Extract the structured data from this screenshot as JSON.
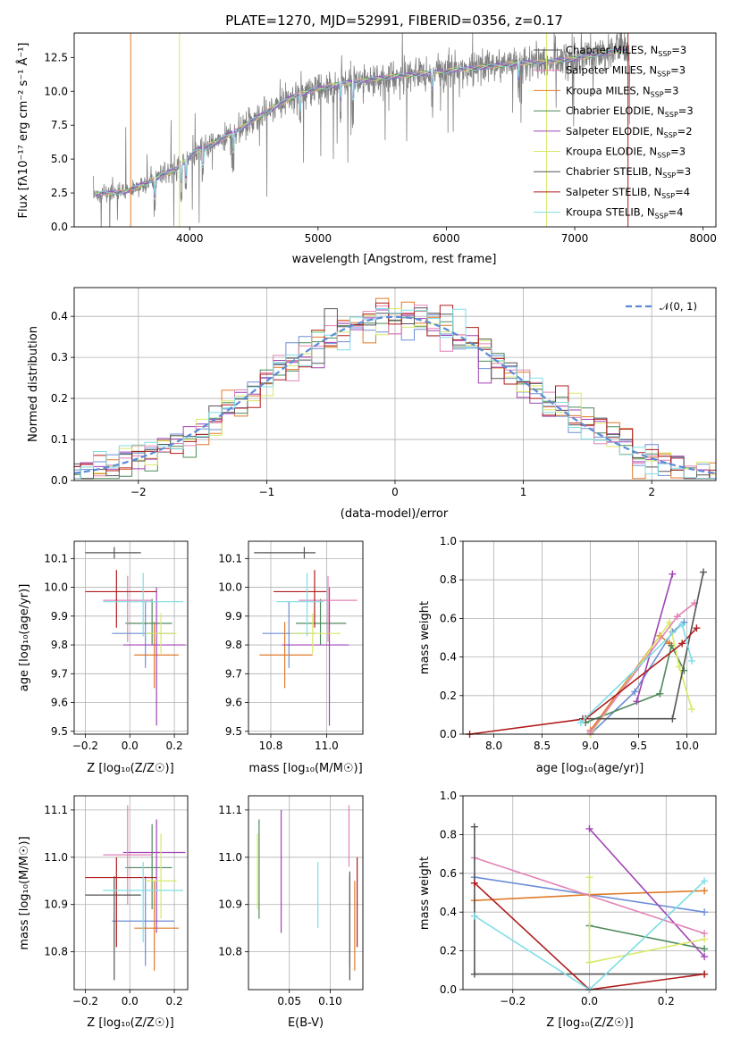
{
  "colors": {
    "c0": "#6b8ed6",
    "c1": "#e07b2a",
    "c2": "#4e8a5b",
    "c3": "#a043b5",
    "c4": "#d9e86a",
    "c5": "#e284b6",
    "c6": "#555555",
    "c7": "#b01c1c",
    "c8": "#7fdde6",
    "spectrum": "#808080",
    "grid": "#b0b0b0"
  },
  "chart_data": [
    {
      "id": "spectrum",
      "type": "line",
      "title": "PLATE=1270, MJD=52991, FIBERID=0356, z=0.17",
      "xlabel": "wavelength [Angstrom, rest frame]",
      "ylabel": "Flux [fλ10⁻¹⁷ erg cm⁻² s⁻¹ Å⁻¹]",
      "xlim": [
        3100,
        8100
      ],
      "ylim": [
        0,
        14.3
      ],
      "xticks": [
        "4000",
        "5000",
        "6000",
        "7000",
        "8000"
      ],
      "yticks": [
        "0.0",
        "2.5",
        "5.0",
        "7.5",
        "10.0",
        "12.5"
      ],
      "legend_position": "top-right",
      "legend": [
        {
          "label": "Chabrier MILES, N",
          "sub": "SSP",
          "suffix": "=3",
          "color": "c6"
        },
        {
          "label": "Salpeter MILES, N",
          "sub": "SSP",
          "suffix": "=3",
          "color": "c5"
        },
        {
          "label": "Kroupa MILES, N",
          "sub": "SSP",
          "suffix": "=3",
          "color": "c1"
        },
        {
          "label": "Chabrier ELODIE, N",
          "sub": "SSP",
          "suffix": "=3",
          "color": "c2"
        },
        {
          "label": "Salpeter ELODIE, N",
          "sub": "SSP",
          "suffix": "=2",
          "color": "c3"
        },
        {
          "label": "Kroupa ELODIE, N",
          "sub": "SSP",
          "suffix": "=3",
          "color": "c4"
        },
        {
          "label": "Chabrier STELIB, N",
          "sub": "SSP",
          "suffix": "=3",
          "color": "c6"
        },
        {
          "label": "Salpeter STELIB, N",
          "sub": "SSP",
          "suffix": "=4",
          "color": "c7"
        },
        {
          "label": "Kroupa STELIB, N",
          "sub": "SSP",
          "suffix": "=4",
          "color": "c8"
        }
      ],
      "continuum": [
        [
          3250,
          2.4
        ],
        [
          3500,
          2.6
        ],
        [
          3700,
          3.4
        ],
        [
          3900,
          4.3
        ],
        [
          4050,
          5.6
        ],
        [
          4200,
          6.2
        ],
        [
          4400,
          7.3
        ],
        [
          4600,
          8.5
        ],
        [
          4800,
          9.6
        ],
        [
          5000,
          10.2
        ],
        [
          5200,
          10.6
        ],
        [
          5500,
          11.0
        ],
        [
          5800,
          11.3
        ],
        [
          6000,
          11.5
        ],
        [
          6300,
          11.8
        ],
        [
          6600,
          12.1
        ],
        [
          6800,
          12.2
        ],
        [
          7000,
          12.4
        ],
        [
          7200,
          12.8
        ],
        [
          7400,
          13.1
        ]
      ]
    },
    {
      "id": "residual_hist",
      "type": "line",
      "xlabel": "(data-model)/error",
      "ylabel": "Normed distribution",
      "xlim": [
        -2.5,
        2.5
      ],
      "ylim": [
        0,
        0.47
      ],
      "xticks": [
        "−2",
        "−1",
        "0",
        "1",
        "2"
      ],
      "yticks": [
        "0.0",
        "0.1",
        "0.2",
        "0.3",
        "0.4"
      ],
      "legend_position": "top-right",
      "legend_label": "𝒩(0, 1)",
      "bin_width": 0.1
    },
    {
      "id": "age_vs_Z",
      "type": "scatter",
      "xlabel": "Z [log₁₀(Z/Z☉)]",
      "ylabel": "age  [log₁₀(age/yr)]",
      "xlim": [
        -0.25,
        0.26
      ],
      "ylim": [
        9.49,
        10.16
      ],
      "xticks": [
        -0.2,
        0.0,
        0.2
      ],
      "yticks": [
        9.5,
        9.6,
        9.7,
        9.8,
        9.9,
        10.0,
        10.1
      ]
    },
    {
      "id": "age_vs_mass",
      "type": "scatter",
      "xlabel": "mass [log₁₀(M/M☉)]",
      "ylabel": "",
      "xlim": [
        10.72,
        11.13
      ],
      "ylim": [
        9.49,
        10.16
      ],
      "xticks": [
        10.8,
        11.0
      ],
      "yticks": [
        9.5,
        9.6,
        9.7,
        9.8,
        9.9,
        10.0,
        10.1
      ]
    },
    {
      "id": "weight_vs_age",
      "type": "line",
      "xlabel": "age  [log₁₀(age/yr)]",
      "ylabel": "mass weight",
      "xlim": [
        7.68,
        10.3
      ],
      "ylim": [
        0,
        1
      ],
      "xticks": [
        8.0,
        8.5,
        9.0,
        9.5,
        10.0
      ],
      "yticks": [
        0.0,
        0.2,
        0.4,
        0.6,
        0.8,
        1.0
      ]
    },
    {
      "id": "mass_vs_Z",
      "type": "scatter",
      "xlabel": "Z [log₁₀(Z/Z☉)]",
      "ylabel": "mass [log₁₀(M/M☉)]",
      "xlim": [
        -0.25,
        0.26
      ],
      "ylim": [
        10.72,
        11.13
      ],
      "xticks": [
        -0.2,
        0.0,
        0.2
      ],
      "yticks": [
        10.8,
        10.9,
        11.0,
        11.1
      ]
    },
    {
      "id": "mass_vs_ebv",
      "type": "scatter",
      "xlabel": "E(B-V)",
      "ylabel": "",
      "xlim": [
        0.0,
        0.14
      ],
      "ylim": [
        10.72,
        11.13
      ],
      "xticks": [
        0.05,
        0.1
      ],
      "yticks": [
        10.8,
        10.9,
        11.0,
        11.1
      ]
    },
    {
      "id": "weight_vs_Z",
      "type": "line",
      "xlabel": "Z [log₁₀(Z/Z☉)]",
      "ylabel": "mass weight",
      "xlim": [
        -0.33,
        0.33
      ],
      "ylim": [
        0,
        1
      ],
      "xticks": [
        -0.2,
        0.0,
        0.2
      ],
      "yticks": [
        0.0,
        0.2,
        0.4,
        0.6,
        0.8,
        1.0
      ]
    }
  ],
  "fits": [
    {
      "color": "c0",
      "Z": 0.07,
      "Zlo": -0.08,
      "Zhi": 0.2,
      "age": 9.84,
      "alo": 9.72,
      "ahi": 9.95,
      "mass": 10.865,
      "mlo": 10.77,
      "mhi": 10.96,
      "ebv": 0.124,
      "elo": 10.77,
      "ehi": 10.96,
      "ages": [
        9.0,
        9.46,
        9.85,
        9.97
      ],
      "w": [
        0.0,
        0.22,
        0.53,
        0.58
      ],
      "Zs": [
        -0.3,
        0.3
      ],
      "wz": [
        0.58,
        0.4
      ]
    },
    {
      "color": "c1",
      "Z": 0.11,
      "Zlo": 0.02,
      "Zhi": 0.22,
      "age": 9.765,
      "alo": 9.65,
      "ahi": 9.88,
      "mass": 10.85,
      "mlo": 10.76,
      "mhi": 10.95,
      "ebv": 0.13,
      "elo": 10.76,
      "ehi": 10.95,
      "ages": [
        9.0,
        9.72,
        9.82
      ],
      "w": [
        0.02,
        0.51,
        0.47
      ],
      "Zs": [
        -0.3,
        0.0,
        0.3
      ],
      "wz": [
        0.46,
        0.49,
        0.51
      ]
    },
    {
      "color": "c2",
      "Z": 0.1,
      "Zlo": -0.02,
      "Zhi": 0.19,
      "age": 9.875,
      "alo": 9.8,
      "ahi": 9.96,
      "mass": 10.978,
      "mlo": 10.89,
      "mhi": 11.07,
      "ebv": 0.013,
      "elo": 10.87,
      "ehi": 11.08,
      "ages": [
        8.95,
        9.72,
        9.84,
        9.97
      ],
      "w": [
        0.06,
        0.21,
        0.46,
        0.33
      ],
      "Zs": [
        0.0,
        0.3
      ],
      "wz": [
        0.33,
        0.21
      ]
    },
    {
      "color": "c3",
      "Z": 0.12,
      "Zlo": -0.03,
      "Zhi": 0.25,
      "age": 9.8,
      "alo": 9.52,
      "ahi": 10.0,
      "mass": 11.01,
      "mlo": 10.84,
      "mhi": 11.08,
      "ebv": 0.04,
      "elo": 10.84,
      "ehi": 11.1,
      "ages": [
        9.48,
        9.85
      ],
      "w": [
        0.17,
        0.83
      ],
      "Zs": [
        0.0,
        0.3
      ],
      "wz": [
        0.83,
        0.17
      ]
    },
    {
      "color": "c4",
      "Z": 0.14,
      "Zlo": 0.07,
      "Zhi": 0.21,
      "age": 9.84,
      "alo": 9.77,
      "ahi": 9.91,
      "mass": 10.95,
      "mlo": 10.87,
      "mhi": 11.05,
      "ebv": 0.011,
      "elo": 10.89,
      "ehi": 11.05,
      "ages": [
        9.0,
        9.82,
        9.92,
        10.05
      ],
      "w": [
        0.0,
        0.58,
        0.35,
        0.13
      ],
      "Zs": [
        0.0,
        0.0,
        0.3
      ],
      "wz": [
        0.58,
        0.14,
        0.26
      ]
    },
    {
      "color": "c5",
      "Z": -0.01,
      "Zlo": -0.12,
      "Zhi": 0.1,
      "age": 9.955,
      "alo": 9.81,
      "ahi": 10.04,
      "mass": 11.005,
      "mlo": 10.9,
      "mhi": 11.11,
      "ebv": 0.123,
      "elo": 10.98,
      "ehi": 11.11,
      "ages": [
        9.0,
        9.9,
        10.08
      ],
      "w": [
        0.01,
        0.61,
        0.68
      ],
      "Zs": [
        -0.3,
        0.3
      ],
      "wz": [
        0.68,
        0.29
      ]
    },
    {
      "color": "c6",
      "Z": -0.07,
      "Zlo": -0.2,
      "Zhi": 0.05,
      "age": 10.12,
      "alo": 10.1,
      "ahi": 10.14,
      "mass": 10.92,
      "mlo": 10.74,
      "mhi": 10.96,
      "ebv": 0.124,
      "elo": 10.74,
      "ehi": 10.97,
      "ages": [
        8.92,
        9.85,
        10.17
      ],
      "w": [
        0.08,
        0.08,
        0.84
      ],
      "Zs": [
        -0.3,
        -0.3,
        0.3
      ],
      "wz": [
        0.84,
        0.08,
        0.08
      ]
    },
    {
      "color": "c7",
      "Z": -0.06,
      "Zlo": -0.2,
      "Zhi": 0.12,
      "age": 9.985,
      "alo": 9.86,
      "ahi": 10.06,
      "mass": 10.957,
      "mlo": 10.81,
      "mhi": 11.0,
      "ebv": 0.133,
      "elo": 10.81,
      "ehi": 11.0,
      "ages": [
        7.75,
        8.95,
        9.95,
        10.1
      ],
      "w": [
        0.0,
        0.08,
        0.47,
        0.55
      ],
      "Zs": [
        -0.3,
        0.0,
        0.3
      ],
      "wz": [
        0.55,
        0.0,
        0.08
      ]
    },
    {
      "color": "c8",
      "Z": 0.06,
      "Zlo": -0.12,
      "Zhi": 0.24,
      "age": 9.95,
      "alo": 9.83,
      "ahi": 10.05,
      "mass": 10.93,
      "mlo": 10.82,
      "mhi": 10.99,
      "ebv": 0.085,
      "elo": 10.85,
      "ehi": 10.99,
      "ages": [
        8.9,
        9.95,
        10.05
      ],
      "w": [
        0.06,
        0.57,
        0.38
      ],
      "Zs": [
        -0.3,
        0.0,
        0.3
      ],
      "wz": [
        0.38,
        0.0,
        0.56
      ]
    }
  ]
}
